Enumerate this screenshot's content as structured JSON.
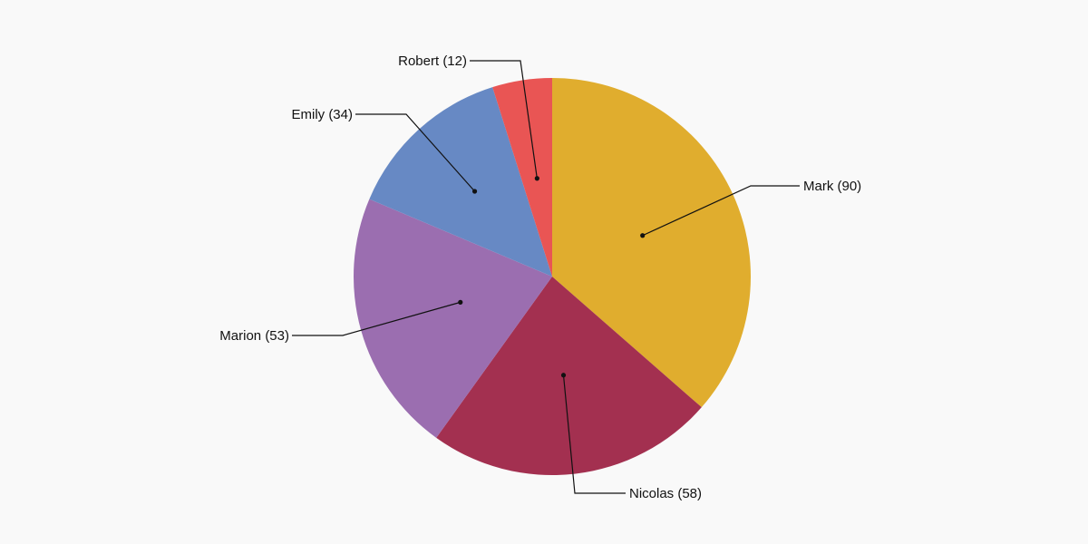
{
  "chart_data": {
    "type": "pie",
    "start_angle_deg": 0,
    "direction": "clockwise",
    "slices": [
      {
        "label": "Mark (90)",
        "name": "Mark",
        "value": 90,
        "color": "#e0ad2e"
      },
      {
        "label": "Nicolas (58)",
        "name": "Nicolas",
        "value": 58,
        "color": "#a33050"
      },
      {
        "label": "Marion (53)",
        "name": "Marion",
        "value": 53,
        "color": "#9b6eb0"
      },
      {
        "label": "Emily (34)",
        "name": "Emily",
        "value": 34,
        "color": "#6789c4"
      },
      {
        "label": "Robert (12)",
        "name": "Robert",
        "value": 12,
        "color": "#e95554"
      }
    ],
    "title": "",
    "legend": "none",
    "labels": "outside-with-leader-lines",
    "background": "#f9f9f9"
  }
}
